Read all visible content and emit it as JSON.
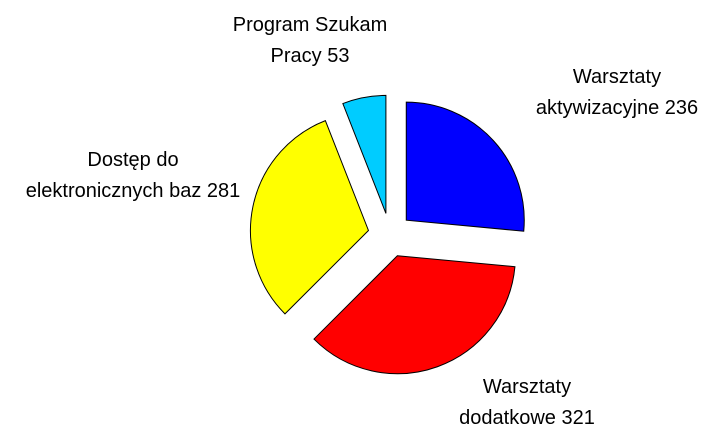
{
  "chart_data": {
    "type": "pie",
    "categories": [
      "Warsztaty aktywizacyjne",
      "Warsztaty dodatkowe",
      "Dostęp do elektronicznych baz",
      "Program Szukam Pracy"
    ],
    "values": [
      236,
      321,
      281,
      53
    ],
    "colors": [
      "#0000ff",
      "#ff0000",
      "#ffff00",
      "#00ccff"
    ]
  }
}
